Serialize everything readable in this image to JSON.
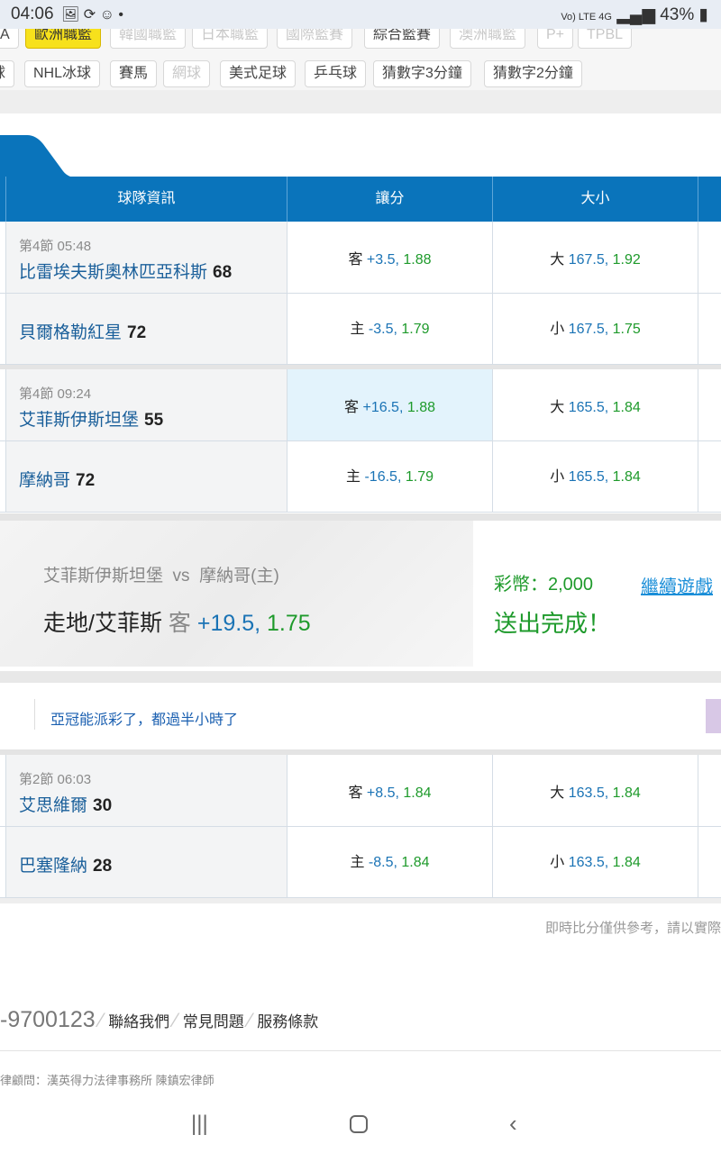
{
  "status_bar": {
    "time": "04:06",
    "network": "Vo) LTE 4G",
    "battery": "43%"
  },
  "tags_row1": [
    {
      "label": "A",
      "state": "normal"
    },
    {
      "label": "歐洲職籃",
      "state": "active"
    },
    {
      "label": "韓國職籃",
      "state": "dim"
    },
    {
      "label": "日本職籃",
      "state": "dim"
    },
    {
      "label": "國際籃賽",
      "state": "dim"
    },
    {
      "label": "綜合籃賽",
      "state": "normal"
    },
    {
      "label": "澳洲職籃",
      "state": "dim"
    },
    {
      "label": "P+",
      "state": "dim"
    },
    {
      "label": "TPBL",
      "state": "dim"
    }
  ],
  "tags_row2": [
    {
      "label": "球",
      "state": "normal"
    },
    {
      "label": "NHL冰球",
      "state": "normal"
    },
    {
      "label": "賽馬",
      "state": "normal"
    },
    {
      "label": "網球",
      "state": "dim"
    },
    {
      "label": "美式足球",
      "state": "normal"
    },
    {
      "label": "乒乓球",
      "state": "normal"
    },
    {
      "label": "猜數字3分鐘",
      "state": "normal"
    },
    {
      "label": "猜數字2分鐘",
      "state": "normal"
    }
  ],
  "table_header": {
    "team": "球隊資訊",
    "handicap": "讓分",
    "over_under": "大小"
  },
  "games": [
    {
      "period": "第4節 05:48",
      "rows": [
        {
          "team": "比雷埃夫斯奧林匹亞科斯",
          "score": "68",
          "hc_side": "客",
          "hc_line": "+3.5,",
          "hc_odds": "1.88",
          "ou_side": "大",
          "ou_line": "167.5,",
          "ou_odds": "1.92"
        },
        {
          "team": "貝爾格勒紅星",
          "score": "72",
          "hc_side": "主",
          "hc_line": "-3.5,",
          "hc_odds": "1.79",
          "ou_side": "小",
          "ou_line": "167.5,",
          "ou_odds": "1.75"
        }
      ]
    },
    {
      "period": "第4節 09:24",
      "rows": [
        {
          "team": "艾菲斯伊斯坦堡",
          "score": "55",
          "hc_side": "客",
          "hc_line": "+16.5,",
          "hc_odds": "1.88",
          "ou_side": "大",
          "ou_line": "165.5,",
          "ou_odds": "1.84",
          "selected": true
        },
        {
          "team": "摩納哥",
          "score": "72",
          "hc_side": "主",
          "hc_line": "-16.5,",
          "hc_odds": "1.79",
          "ou_side": "小",
          "ou_line": "165.5,",
          "ou_odds": "1.84"
        }
      ]
    },
    {
      "period": "第2節 06:03",
      "rows": [
        {
          "team": "艾思維爾",
          "score": "30",
          "hc_side": "客",
          "hc_line": "+8.5,",
          "hc_odds": "1.84",
          "ou_side": "大",
          "ou_line": "163.5,",
          "ou_odds": "1.84"
        },
        {
          "team": "巴塞隆納",
          "score": "28",
          "hc_side": "主",
          "hc_line": "-8.5,",
          "hc_odds": "1.84",
          "ou_side": "小",
          "ou_line": "163.5,",
          "ou_odds": "1.84"
        }
      ]
    }
  ],
  "bet_confirm": {
    "matchup": "艾菲斯伊斯坦堡  vs  摩納哥(主)",
    "pick": "走地/艾菲斯",
    "side": "客",
    "line": "+19.5,",
    "odds": "1.75",
    "coins": "彩幣：2,000",
    "status": "送出完成！",
    "continue_link": "繼續遊戲"
  },
  "comment": {
    "text": "亞冠能派彩了，都過半小時了"
  },
  "disclaimer": "即時比分僅供參考，請以實際",
  "footer": {
    "phone": "-9700123",
    "links": [
      "聯絡我們",
      "常見問題",
      "服務條款"
    ],
    "legal": "律顧問：漢英得力法律事務所 陳鎮宏律師"
  },
  "colors": {
    "header_blue": "#0a74bb",
    "active_tag": "#f7e11c",
    "odds_green": "#1e9a2b",
    "line_blue": "#1a73b5"
  }
}
